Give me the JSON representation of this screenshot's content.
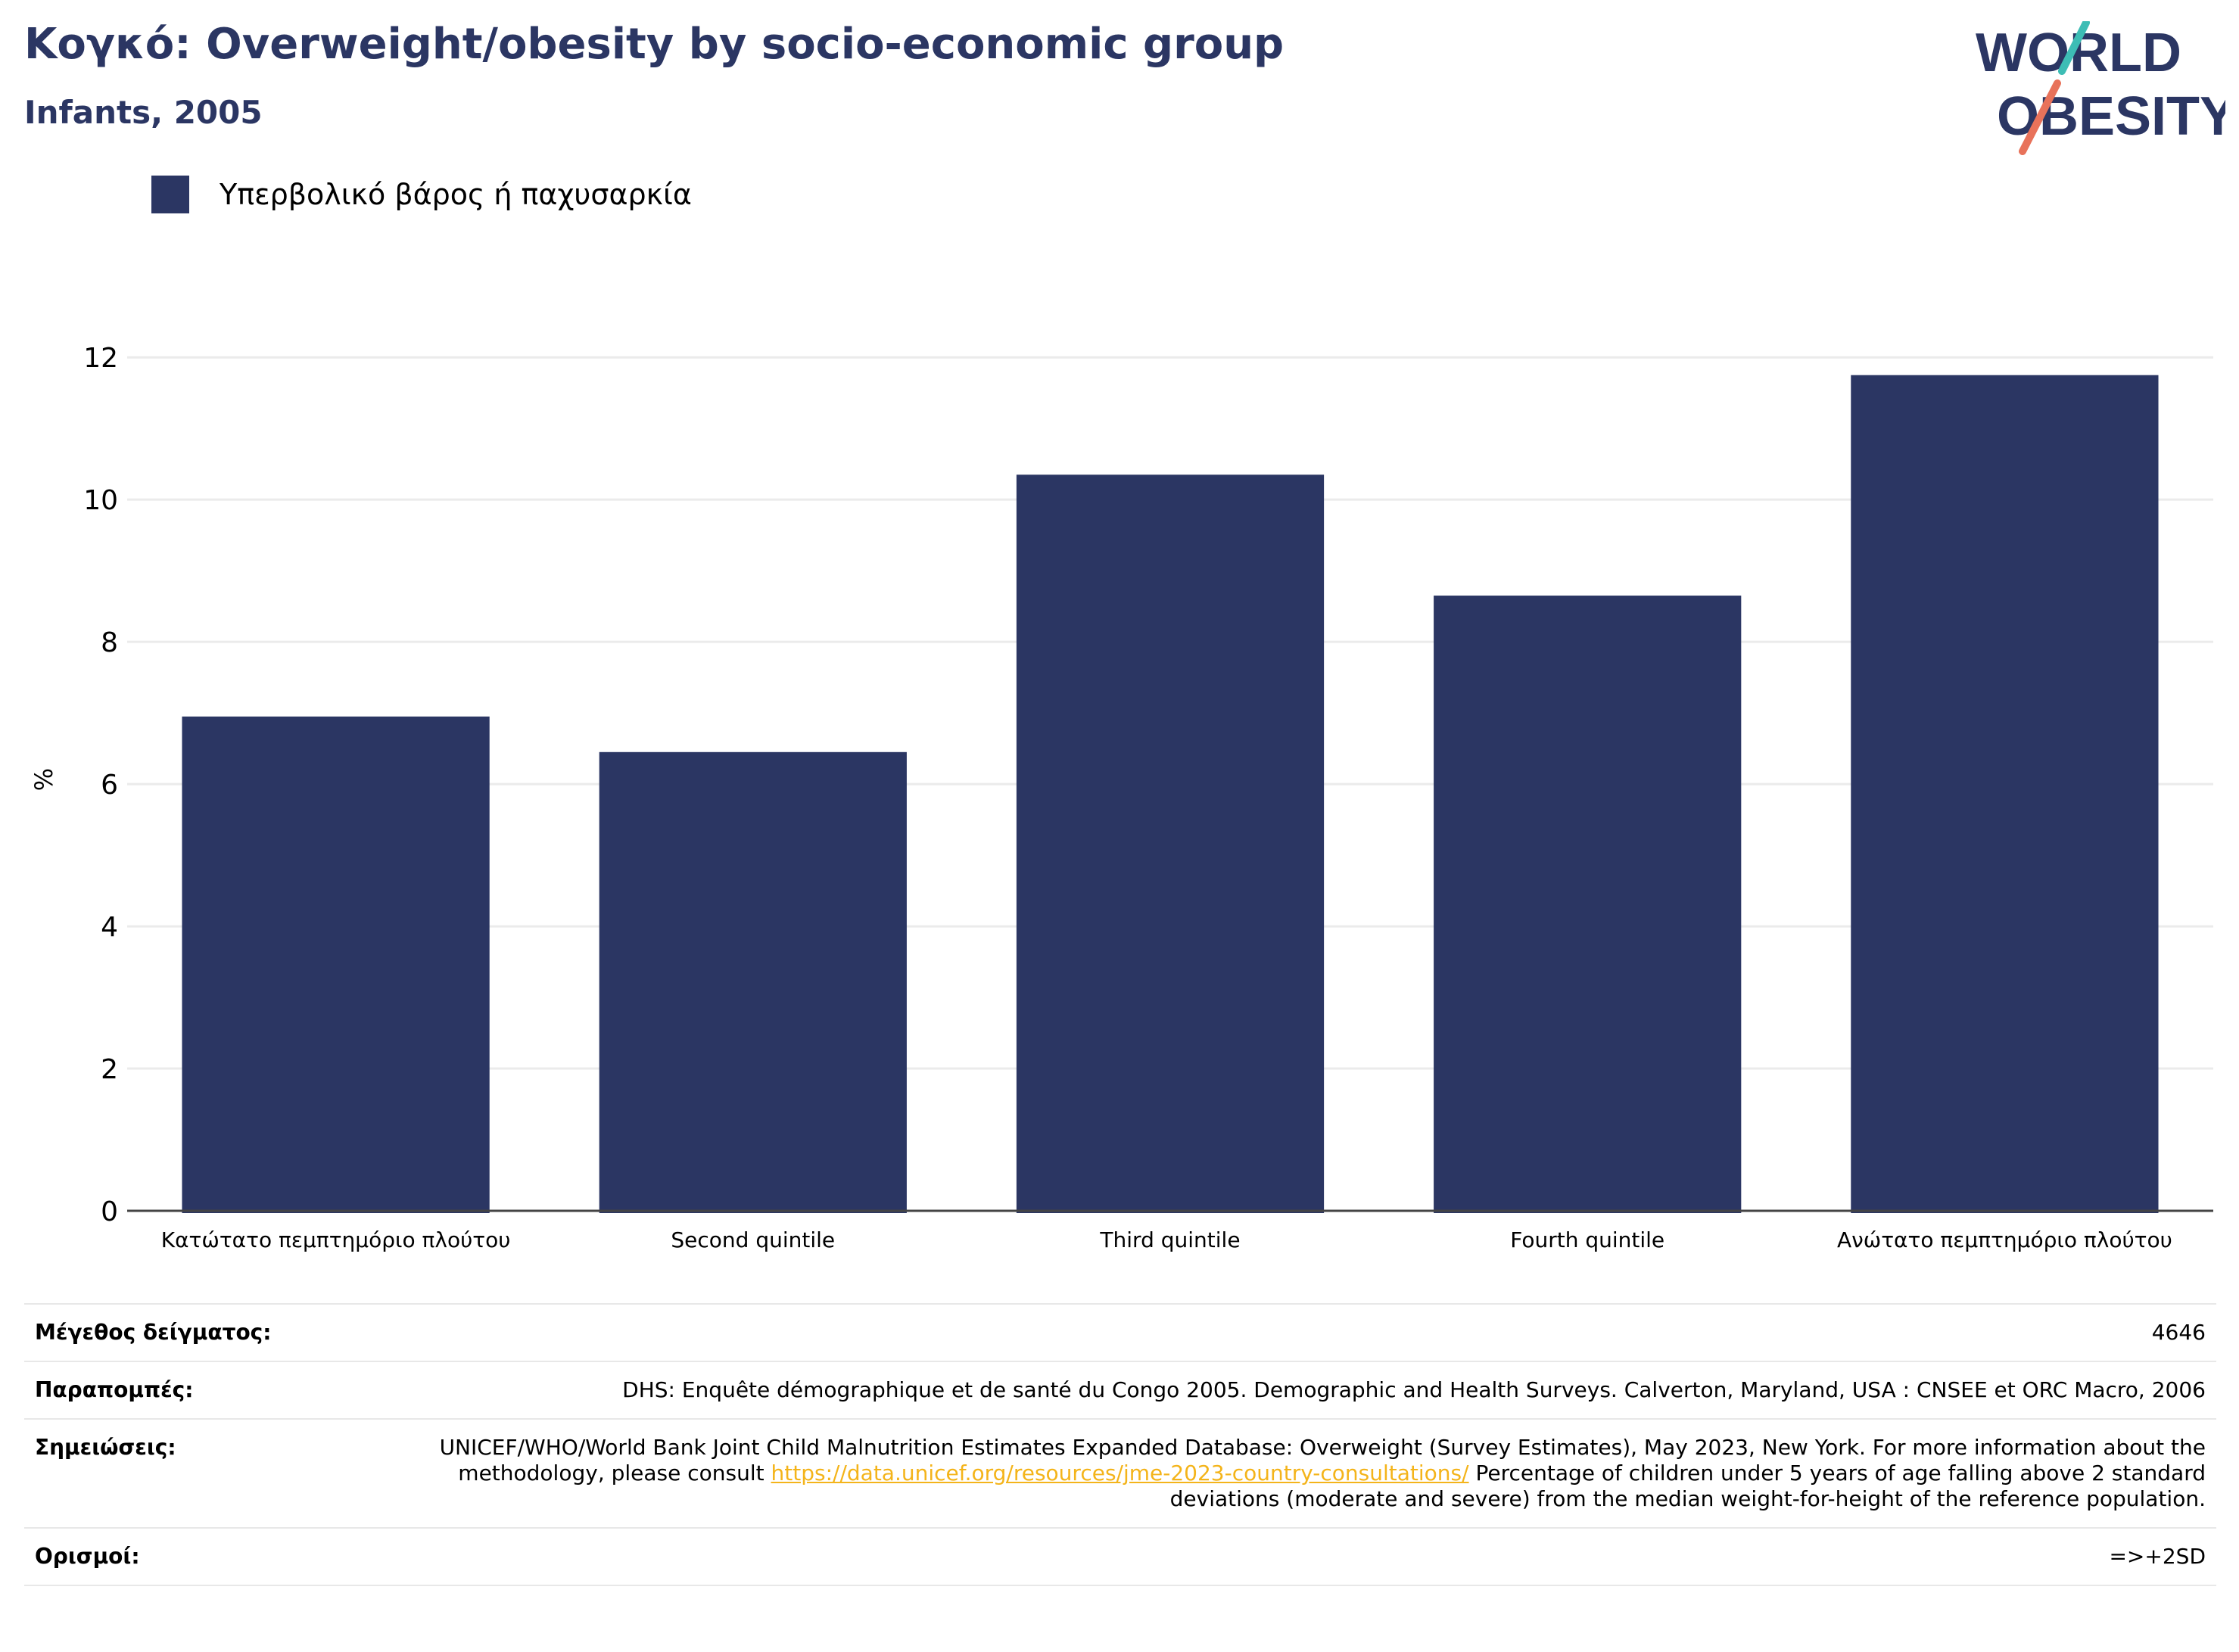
{
  "header": {
    "title": "Κογκό: Overweight/obesity by socio-economic group",
    "subtitle": "Infants, 2005"
  },
  "logo": {
    "line1": "WORLD",
    "line2": "OBESITY",
    "colors": {
      "text": "#2b3663",
      "slash_teal": "#3dbdb5",
      "slash_coral": "#e8725a"
    }
  },
  "chart_data": {
    "type": "bar",
    "categories": [
      "Κατώτατο πεμπτημόριο πλούτου",
      "Second quintile",
      "Third quintile",
      "Fourth quintile",
      "Ανώτατο πεμπτημόριο πλούτου"
    ],
    "series": [
      {
        "name": "Υπερβολικό βάρος ή παχυσαρκία",
        "values": [
          6.95,
          6.45,
          10.35,
          8.65,
          11.75
        ],
        "color": "#2b3663"
      }
    ],
    "ylabel": "%",
    "ylim": [
      0,
      12.3
    ],
    "yticks": [
      0,
      2,
      4,
      6,
      8,
      10,
      12
    ],
    "grid": true,
    "legend_position": "top-left"
  },
  "info": {
    "rows": [
      {
        "key": "Μέγεθος δείγματος:",
        "value": "4646"
      },
      {
        "key": "Παραπομπές:",
        "value": "DHS: Enquête démographique et de santé du Congo 2005. Demographic and Health Surveys. Calverton, Maryland, USA : CNSEE et ORC Macro, 2006"
      },
      {
        "key": "Σημειώσεις:",
        "value_before": "UNICEF/WHO/World Bank Joint Child Malnutrition Estimates Expanded Database: Overweight (Survey Estimates), May 2023, New York. For more information about the methodology, please consult ",
        "link": "https://data.unicef.org/resources/jme-2023-country-consultations/",
        "value_after": " Percentage of children under 5 years of age falling above 2 standard deviations (moderate and severe) from the median weight-for-height of the reference population."
      },
      {
        "key": "Ορισμοί:",
        "value": "=>+2SD"
      }
    ]
  }
}
